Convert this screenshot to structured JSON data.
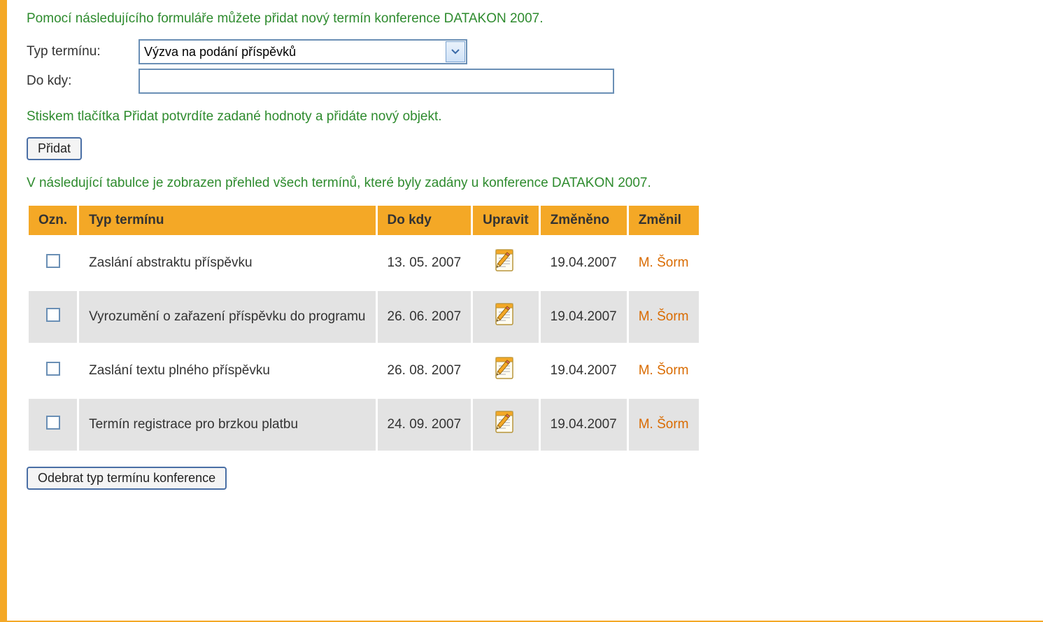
{
  "colors": {
    "accent_orange": "#f4a826",
    "accent_orange_text": "#d96b00",
    "green_text": "#2e8b2e",
    "input_border": "#6a8fb5",
    "row_even_bg": "#e3e3e3",
    "row_odd_bg": "#ffffff"
  },
  "intro_text": "Pomocí následujícího formuláře můžete přidat nový termín konference DATAKON 2007.",
  "form": {
    "type_label": "Typ termínu:",
    "type_selected": "Výzva na podání příspěvků",
    "until_label": "Do kdy:",
    "until_value": ""
  },
  "confirm_text": "Stiskem tlačítka Přidat potvrdíte zadané hodnoty a přidáte nový objekt.",
  "add_button": "Přidat",
  "table_intro": "V následující tabulce je zobrazen přehled všech termínů, které byly zadány u konference DATAKON 2007.",
  "table": {
    "columns": [
      "Ozn.",
      "Typ termínu",
      "Do kdy",
      "Upravit",
      "Změněno",
      "Změnil"
    ],
    "rows": [
      {
        "type": "Zaslání abstraktu příspěvku",
        "until": "13. 05. 2007",
        "changed": "19.04.2007",
        "by": "M. Šorm"
      },
      {
        "type": "Vyrozumění o zařazení příspěvku do programu",
        "until": "26. 06. 2007",
        "changed": "19.04.2007",
        "by": "M. Šorm"
      },
      {
        "type": "Zaslání textu plného příspěvku",
        "until": "26. 08. 2007",
        "changed": "19.04.2007",
        "by": "M. Šorm"
      },
      {
        "type": "Termín registrace pro brzkou platbu",
        "until": "24. 09. 2007",
        "changed": "19.04.2007",
        "by": "M. Šorm"
      }
    ]
  },
  "remove_button": "Odebrat typ termínu konference"
}
